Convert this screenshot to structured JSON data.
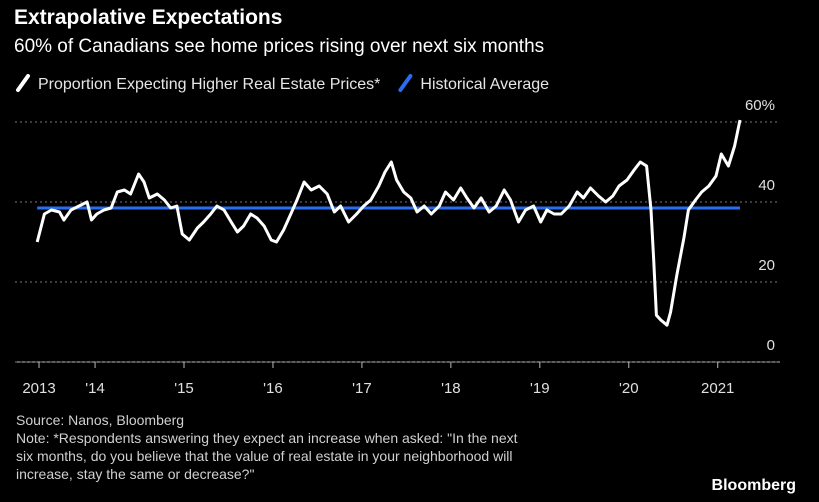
{
  "chart_data": {
    "type": "line",
    "title": "Extrapolative Expectations",
    "subtitle": "60% of Canadians see home prices rising over next six months",
    "source": "Source: Nanos, Bloomberg",
    "note": [
      "Note: *Respondents answering they expect an increase when asked: \"In the next",
      "six months, do you believe that the value of real estate in your neighborhood will",
      "increase, stay the same or decrease?\""
    ],
    "brand": "Bloomberg",
    "xlim": [
      2013.1,
      2021.7
    ],
    "xticks": [
      {
        "value": 2013.37,
        "label": "2013"
      },
      {
        "value": 2014,
        "label": "'14"
      },
      {
        "value": 2015,
        "label": "'15"
      },
      {
        "value": 2016,
        "label": "'16"
      },
      {
        "value": 2017,
        "label": "'17"
      },
      {
        "value": 2018,
        "label": "'18"
      },
      {
        "value": 2019,
        "label": "'19"
      },
      {
        "value": 2020,
        "label": "'20"
      },
      {
        "value": 2021,
        "label": "2021"
      }
    ],
    "ylim": [
      0,
      65
    ],
    "yticks": [
      0,
      20,
      40,
      {
        "value": 60,
        "label": "60%"
      }
    ],
    "grid": true,
    "series": [
      {
        "name": "Proportion Expecting Higher Real Estate Prices*",
        "color": "#ffffff",
        "x": [
          2013.35,
          2013.43,
          2013.51,
          2013.6,
          2013.65,
          2013.73,
          2013.82,
          2013.91,
          2013.96,
          2014.02,
          2014.1,
          2014.18,
          2014.25,
          2014.33,
          2014.4,
          2014.49,
          2014.55,
          2014.61,
          2014.7,
          2014.78,
          2014.85,
          2014.92,
          2014.98,
          2015.06,
          2015.15,
          2015.22,
          2015.3,
          2015.37,
          2015.45,
          2015.53,
          2015.6,
          2015.67,
          2015.75,
          2015.82,
          2015.9,
          2015.98,
          2016.04,
          2016.12,
          2016.2,
          2016.27,
          2016.35,
          2016.43,
          2016.52,
          2016.61,
          2016.69,
          2016.76,
          2016.85,
          2016.94,
          2017.02,
          2017.1,
          2017.19,
          2017.26,
          2017.33,
          2017.39,
          2017.47,
          2017.55,
          2017.62,
          2017.7,
          2017.78,
          2017.87,
          2017.94,
          2018.03,
          2018.11,
          2018.18,
          2018.26,
          2018.34,
          2018.43,
          2018.51,
          2018.6,
          2018.67,
          2018.76,
          2018.84,
          2018.93,
          2019.01,
          2019.08,
          2019.16,
          2019.24,
          2019.33,
          2019.42,
          2019.49,
          2019.57,
          2019.66,
          2019.74,
          2019.82,
          2019.89,
          2019.98,
          2020.06,
          2020.13,
          2020.2,
          2020.25,
          2020.28,
          2020.31,
          2020.36,
          2020.43,
          2020.47,
          2020.54,
          2020.62,
          2020.67,
          2020.75,
          2020.82,
          2020.9,
          2020.98,
          2021.04,
          2021.12,
          2021.19,
          2021.25
        ],
        "values": [
          30,
          37,
          38,
          37.5,
          35.5,
          38,
          39,
          40,
          35.5,
          37,
          38,
          38.5,
          42.5,
          43,
          42,
          47,
          45,
          41,
          42,
          40.5,
          38.5,
          39,
          32,
          30.5,
          33.5,
          35,
          37,
          39,
          38,
          35,
          32.5,
          34,
          37,
          36,
          34,
          30.5,
          30,
          33,
          37,
          40.5,
          45,
          43,
          44,
          42,
          37.5,
          39,
          35,
          37,
          39,
          40.5,
          44,
          47.5,
          50,
          45.5,
          42.5,
          41,
          37.5,
          39,
          37,
          39,
          42.5,
          40.5,
          43.5,
          41,
          38.5,
          41,
          37.5,
          39,
          43,
          40.5,
          35,
          38,
          39,
          35,
          38,
          37,
          37,
          39,
          42.5,
          41,
          43.5,
          41.5,
          40,
          41.5,
          44,
          45.5,
          48,
          50,
          49,
          38,
          25.5,
          11.7,
          10.5,
          9.2,
          12.5,
          21.7,
          31,
          38,
          40.5,
          42.5,
          44,
          46.5,
          52,
          49,
          54,
          60.5
        ]
      },
      {
        "name": "Historical Average",
        "color": "#2a6ef0",
        "x": [
          2013.35,
          2021.25
        ],
        "values": [
          38.5,
          38.5
        ]
      }
    ]
  }
}
